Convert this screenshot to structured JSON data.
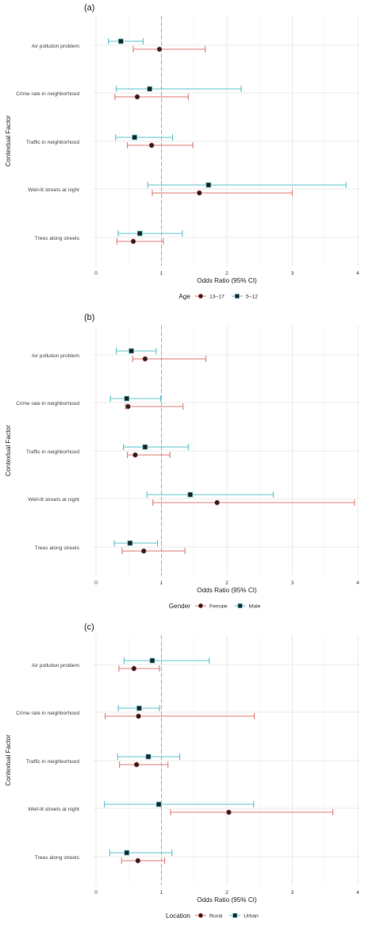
{
  "figure": {
    "panels": [
      "(a)",
      "(b)",
      "(c)"
    ]
  },
  "chart_data": [
    {
      "type": "forest",
      "panel_label": "(a)",
      "xlabel": "Odds Ratio (95% CI)",
      "ylabel": "Contextual Factor",
      "xlim": [
        0,
        4
      ],
      "xticks": [
        "0",
        "1",
        "2",
        "3",
        "4"
      ],
      "reference_line": 1,
      "grid": true,
      "legend_position": "bottom",
      "legend_title": "Age",
      "categories": [
        "Air pollution problem",
        "Crime rate in neighborhood",
        "Traffic in neighborhood",
        "Well-lit streets at night",
        "Trees along streets"
      ],
      "series": [
        {
          "name": "13–17",
          "color": "#e07b76",
          "marker": "circle",
          "or": [
            0.97,
            0.63,
            0.85,
            1.58,
            0.57
          ],
          "lower": [
            0.57,
            0.29,
            0.48,
            0.86,
            0.32
          ],
          "upper": [
            1.67,
            1.41,
            1.48,
            3.0,
            1.03
          ]
        },
        {
          "name": "5–12",
          "color": "#5cc3cc",
          "marker": "square",
          "or": [
            0.38,
            0.82,
            0.59,
            1.72,
            0.67
          ],
          "lower": [
            0.19,
            0.31,
            0.3,
            0.79,
            0.34
          ],
          "upper": [
            0.72,
            2.22,
            1.17,
            3.82,
            1.32
          ]
        }
      ]
    },
    {
      "type": "forest",
      "panel_label": "(b)",
      "xlabel": "Odds Ratio (95% CI)",
      "ylabel": "Contextual Factor",
      "xlim": [
        0,
        4
      ],
      "xticks": [
        "0",
        "1",
        "2",
        "3",
        "4"
      ],
      "reference_line": 1,
      "grid": true,
      "legend_position": "bottom",
      "legend_title": "Gender",
      "categories": [
        "Air pollution problem",
        "Crime rate in neighborhood",
        "Traffic in neighborhood",
        "Well-lit streets at night",
        "Trees along streets"
      ],
      "series": [
        {
          "name": "Female",
          "color": "#e07b76",
          "marker": "circle",
          "or": [
            0.75,
            0.49,
            0.6,
            1.85,
            0.73
          ],
          "lower": [
            0.56,
            0.45,
            0.48,
            0.87,
            0.4
          ],
          "upper": [
            1.68,
            1.33,
            1.13,
            3.95,
            1.36
          ]
        },
        {
          "name": "Male",
          "color": "#5cc3cc",
          "marker": "square",
          "or": [
            0.54,
            0.47,
            0.75,
            1.44,
            0.52
          ],
          "lower": [
            0.31,
            0.22,
            0.42,
            0.78,
            0.28
          ],
          "upper": [
            0.92,
            0.99,
            1.41,
            2.71,
            0.94
          ]
        }
      ]
    },
    {
      "type": "forest",
      "panel_label": "(c)",
      "xlabel": "Odds Ratio (95% CI)",
      "ylabel": "Contextual Factor",
      "xlim": [
        0,
        4
      ],
      "xticks": [
        "0",
        "1",
        "2",
        "3",
        "4"
      ],
      "reference_line": 1,
      "grid": true,
      "legend_position": "bottom",
      "legend_title": "Location",
      "categories": [
        "Air pollution problem",
        "Crime rate in neighborhood",
        "Traffic in neighborhood",
        "Well-lit streets at night",
        "Trees along streets"
      ],
      "series": [
        {
          "name": "Rural",
          "color": "#e07b76",
          "marker": "circle",
          "or": [
            0.58,
            0.65,
            0.62,
            2.03,
            0.64
          ],
          "lower": [
            0.35,
            0.14,
            0.36,
            1.14,
            0.39
          ],
          "upper": [
            0.97,
            2.42,
            1.1,
            3.62,
            1.05
          ]
        },
        {
          "name": "Urban",
          "color": "#5cc3cc",
          "marker": "square",
          "or": [
            0.86,
            0.66,
            0.8,
            0.96,
            0.47
          ],
          "lower": [
            0.43,
            0.34,
            0.33,
            0.13,
            0.21
          ],
          "upper": [
            1.73,
            0.97,
            1.28,
            2.41,
            1.16
          ]
        }
      ]
    }
  ]
}
